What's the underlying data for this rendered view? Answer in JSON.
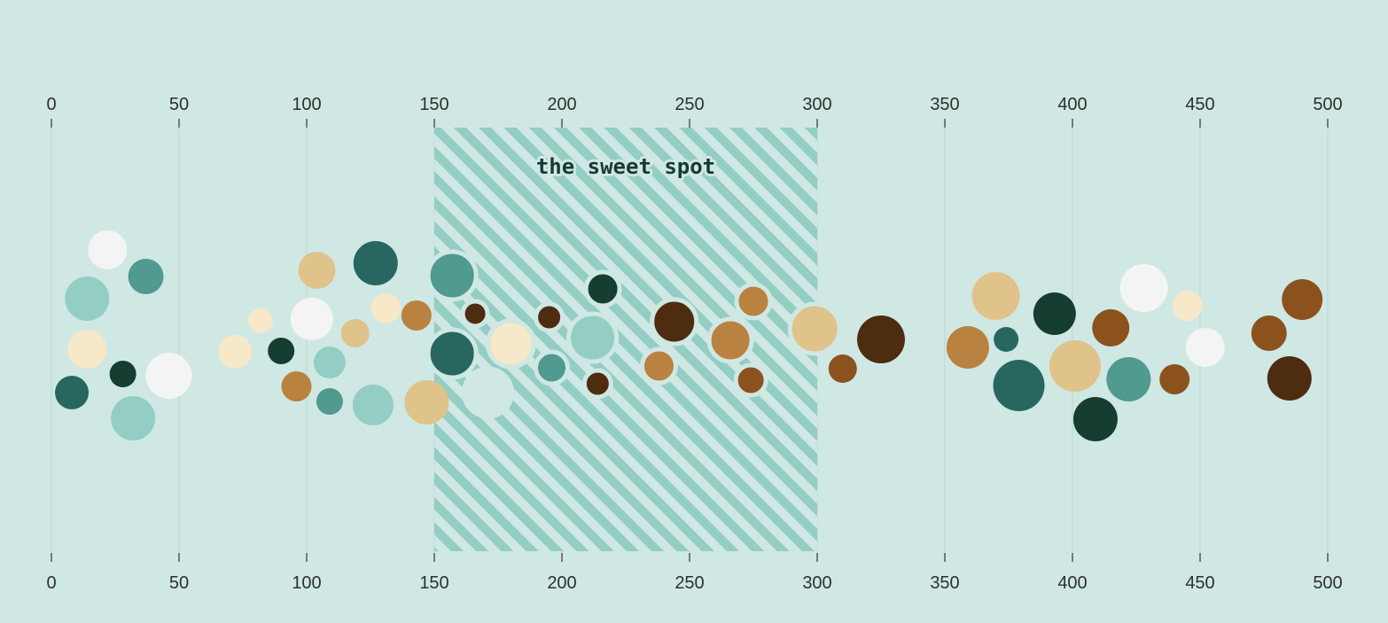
{
  "chart_data": {
    "type": "scatter",
    "chart_style": "beeswarm",
    "x_axis": {
      "range": [
        0,
        500
      ],
      "ticks": [
        0,
        50,
        100,
        150,
        200,
        250,
        300,
        350,
        400,
        450,
        500
      ],
      "tick_labels": [
        "0",
        "50",
        "100",
        "150",
        "200",
        "250",
        "300",
        "350",
        "400",
        "450",
        "500"
      ],
      "positions": [
        "top",
        "bottom"
      ],
      "grid": true
    },
    "y_axis": null,
    "highlight_band": {
      "x_range": [
        150,
        300
      ],
      "pattern": "diagonal-stripes",
      "label": "the sweet spot"
    },
    "palette": [
      "#f4f4f4",
      "#f6e8c8",
      "#dfc38a",
      "#b98240",
      "#8c521e",
      "#4d2c0f",
      "#93cdc3",
      "#509a90",
      "#286760",
      "#153d32"
    ],
    "points": [
      {
        "x": 8,
        "color": "#286760"
      },
      {
        "x": 14,
        "color": "#93cdc3"
      },
      {
        "x": 14,
        "color": "#f6e8c8"
      },
      {
        "x": 22,
        "color": "#f4f4f4"
      },
      {
        "x": 28,
        "color": "#153d32"
      },
      {
        "x": 32,
        "color": "#93cdc3"
      },
      {
        "x": 37,
        "color": "#509a90"
      },
      {
        "x": 46,
        "color": "#f4f4f4"
      },
      {
        "x": 72,
        "color": "#f6e8c8"
      },
      {
        "x": 82,
        "color": "#f6e8c8"
      },
      {
        "x": 90,
        "color": "#153d32"
      },
      {
        "x": 96,
        "color": "#b98240"
      },
      {
        "x": 102,
        "color": "#f4f4f4"
      },
      {
        "x": 104,
        "color": "#dfc38a"
      },
      {
        "x": 109,
        "color": "#93cdc3"
      },
      {
        "x": 109,
        "color": "#509a90"
      },
      {
        "x": 119,
        "color": "#dfc38a"
      },
      {
        "x": 126,
        "color": "#93cdc3"
      },
      {
        "x": 127,
        "color": "#286760"
      },
      {
        "x": 131,
        "color": "#f6e8c8"
      },
      {
        "x": 143,
        "color": "#b98240"
      },
      {
        "x": 147,
        "color": "#dfc38a"
      },
      {
        "x": 157,
        "color": "#509a90"
      },
      {
        "x": 157,
        "color": "#286760"
      },
      {
        "x": 166,
        "color": "#4d2c0f"
      },
      {
        "x": 171,
        "color": "#cfe8e4"
      },
      {
        "x": 180,
        "color": "#f6e8c8"
      },
      {
        "x": 195,
        "color": "#4d2c0f"
      },
      {
        "x": 196,
        "color": "#509a90"
      },
      {
        "x": 212,
        "color": "#93cdc3"
      },
      {
        "x": 214,
        "color": "#4d2c0f"
      },
      {
        "x": 216,
        "color": "#153d32"
      },
      {
        "x": 238,
        "color": "#b98240"
      },
      {
        "x": 244,
        "color": "#4d2c0f"
      },
      {
        "x": 266,
        "color": "#b98240"
      },
      {
        "x": 274,
        "color": "#8c521e"
      },
      {
        "x": 275,
        "color": "#b98240"
      },
      {
        "x": 299,
        "color": "#dfc38a"
      },
      {
        "x": 310,
        "color": "#8c521e"
      },
      {
        "x": 325,
        "color": "#4d2c0f"
      },
      {
        "x": 359,
        "color": "#b98240"
      },
      {
        "x": 370,
        "color": "#dfc38a"
      },
      {
        "x": 374,
        "color": "#286760"
      },
      {
        "x": 379,
        "color": "#286760"
      },
      {
        "x": 393,
        "color": "#153d32"
      },
      {
        "x": 401,
        "color": "#dfc38a"
      },
      {
        "x": 409,
        "color": "#153d32"
      },
      {
        "x": 415,
        "color": "#8c521e"
      },
      {
        "x": 422,
        "color": "#509a90"
      },
      {
        "x": 428,
        "color": "#f4f4f4"
      },
      {
        "x": 440,
        "color": "#8c521e"
      },
      {
        "x": 445,
        "color": "#f6e8c8"
      },
      {
        "x": 452,
        "color": "#f4f4f4"
      },
      {
        "x": 477,
        "color": "#8c521e"
      },
      {
        "x": 485,
        "color": "#4d2c0f"
      },
      {
        "x": 490,
        "color": "#8c521e"
      }
    ]
  }
}
